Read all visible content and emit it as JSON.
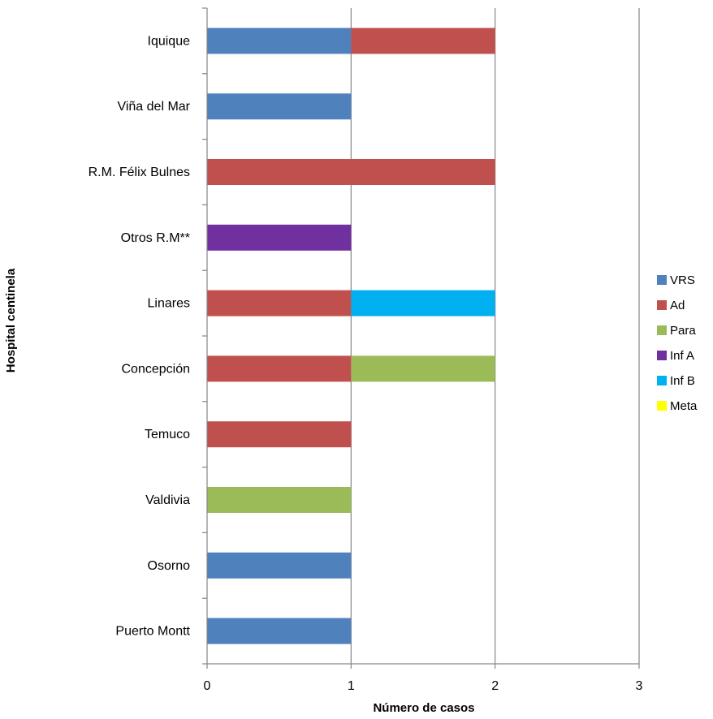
{
  "chart_data": {
    "type": "bar",
    "orientation": "horizontal",
    "stacked": true,
    "categories": [
      "Iquique",
      "Viña del Mar",
      "R.M. Félix Bulnes",
      "Otros R.M**",
      "Linares",
      "Concepción",
      "Temuco",
      "Valdivia",
      "Osorno",
      "Puerto Montt"
    ],
    "series": [
      {
        "name": "VRS",
        "color": "#4F81BD",
        "values": [
          1,
          1,
          0,
          0,
          0,
          0,
          0,
          0,
          1,
          1
        ]
      },
      {
        "name": "Ad",
        "color": "#C0504D",
        "values": [
          1,
          0,
          2,
          0,
          1,
          1,
          1,
          0,
          0,
          0
        ]
      },
      {
        "name": "Para",
        "color": "#9BBB59",
        "values": [
          0,
          0,
          0,
          0,
          0,
          1,
          0,
          1,
          0,
          0
        ]
      },
      {
        "name": "Inf A",
        "color": "#7030A0",
        "values": [
          0,
          0,
          0,
          1,
          0,
          0,
          0,
          0,
          0,
          0
        ]
      },
      {
        "name": "Inf B",
        "color": "#00B0F0",
        "values": [
          0,
          0,
          0,
          0,
          1,
          0,
          0,
          0,
          0,
          0
        ]
      },
      {
        "name": "Meta",
        "color": "#FFFF00",
        "values": [
          0,
          0,
          0,
          0,
          0,
          0,
          0,
          0,
          0,
          0
        ]
      }
    ],
    "xlabel": "Número de casos",
    "ylabel": "Hospital  centinela",
    "xlim": [
      0,
      3
    ],
    "xticks": [
      "0",
      "1",
      "2",
      "3"
    ],
    "grid": "vertical",
    "legend": "right"
  }
}
